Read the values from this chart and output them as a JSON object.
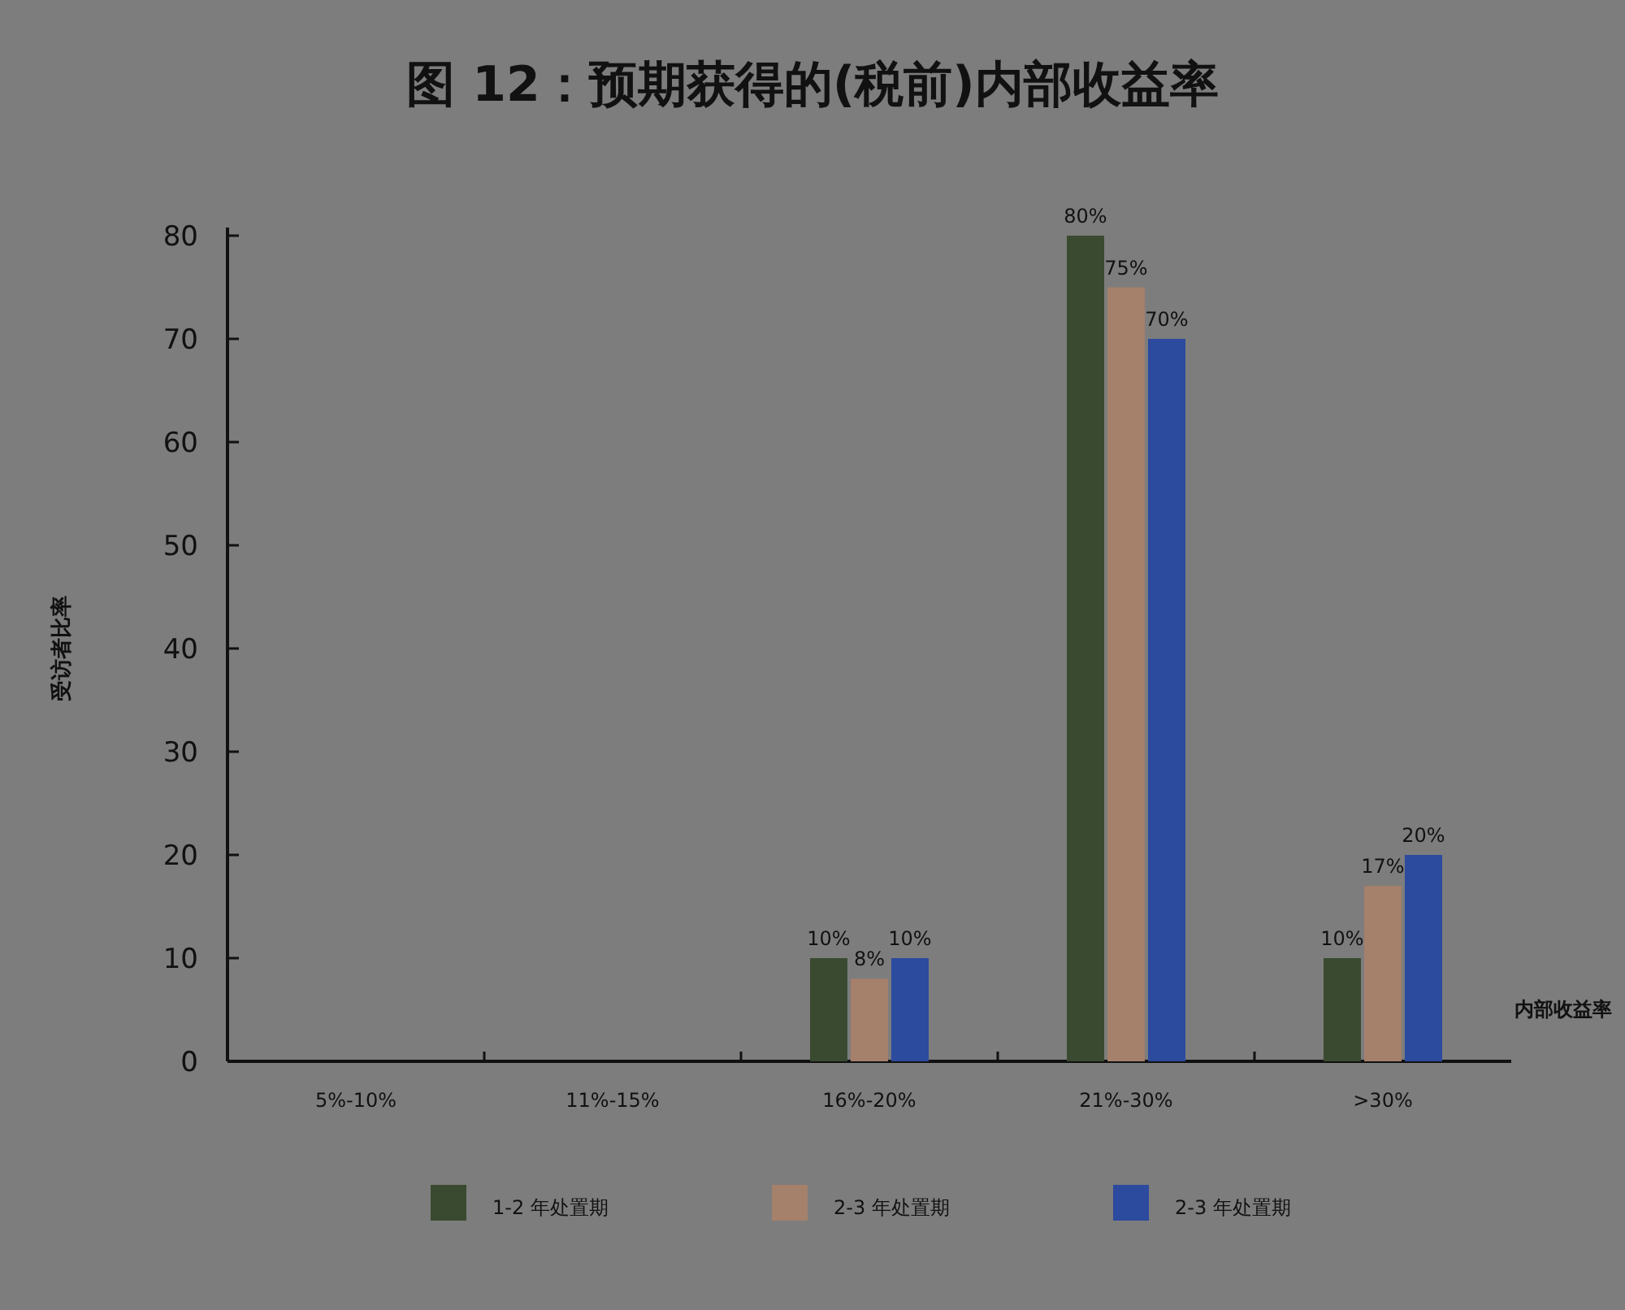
{
  "chart_data": {
    "type": "bar",
    "title": "图 12：预期获得的(税前)内部收益率",
    "xlabel": "内部收益率",
    "ylabel": "受访者比率",
    "categories": [
      "5%-10%",
      "11%-15%",
      "16%-20%",
      "21%-30%",
      ">30%"
    ],
    "series": [
      {
        "name": "1-2 年处置期",
        "color": "#3a4a30",
        "values": [
          0,
          0,
          10,
          80,
          10
        ],
        "value_labels": [
          null,
          null,
          "10%",
          "80%",
          "10%"
        ]
      },
      {
        "name": "2-3 年处置期",
        "color": "#a5806a",
        "values": [
          0,
          0,
          8,
          75,
          17
        ],
        "value_labels": [
          null,
          null,
          "8%",
          "75%",
          "17%"
        ]
      },
      {
        "name": "2-3 年处置期",
        "color": "#2c4a9e",
        "values": [
          0,
          0,
          10,
          70,
          20
        ],
        "value_labels": [
          null,
          null,
          "10%",
          "70%",
          "20%"
        ]
      }
    ],
    "ylim": [
      0,
      80
    ],
    "yticks": [
      0,
      10,
      20,
      30,
      40,
      50,
      60,
      70,
      80
    ],
    "grid": false,
    "legend": "bottom"
  }
}
